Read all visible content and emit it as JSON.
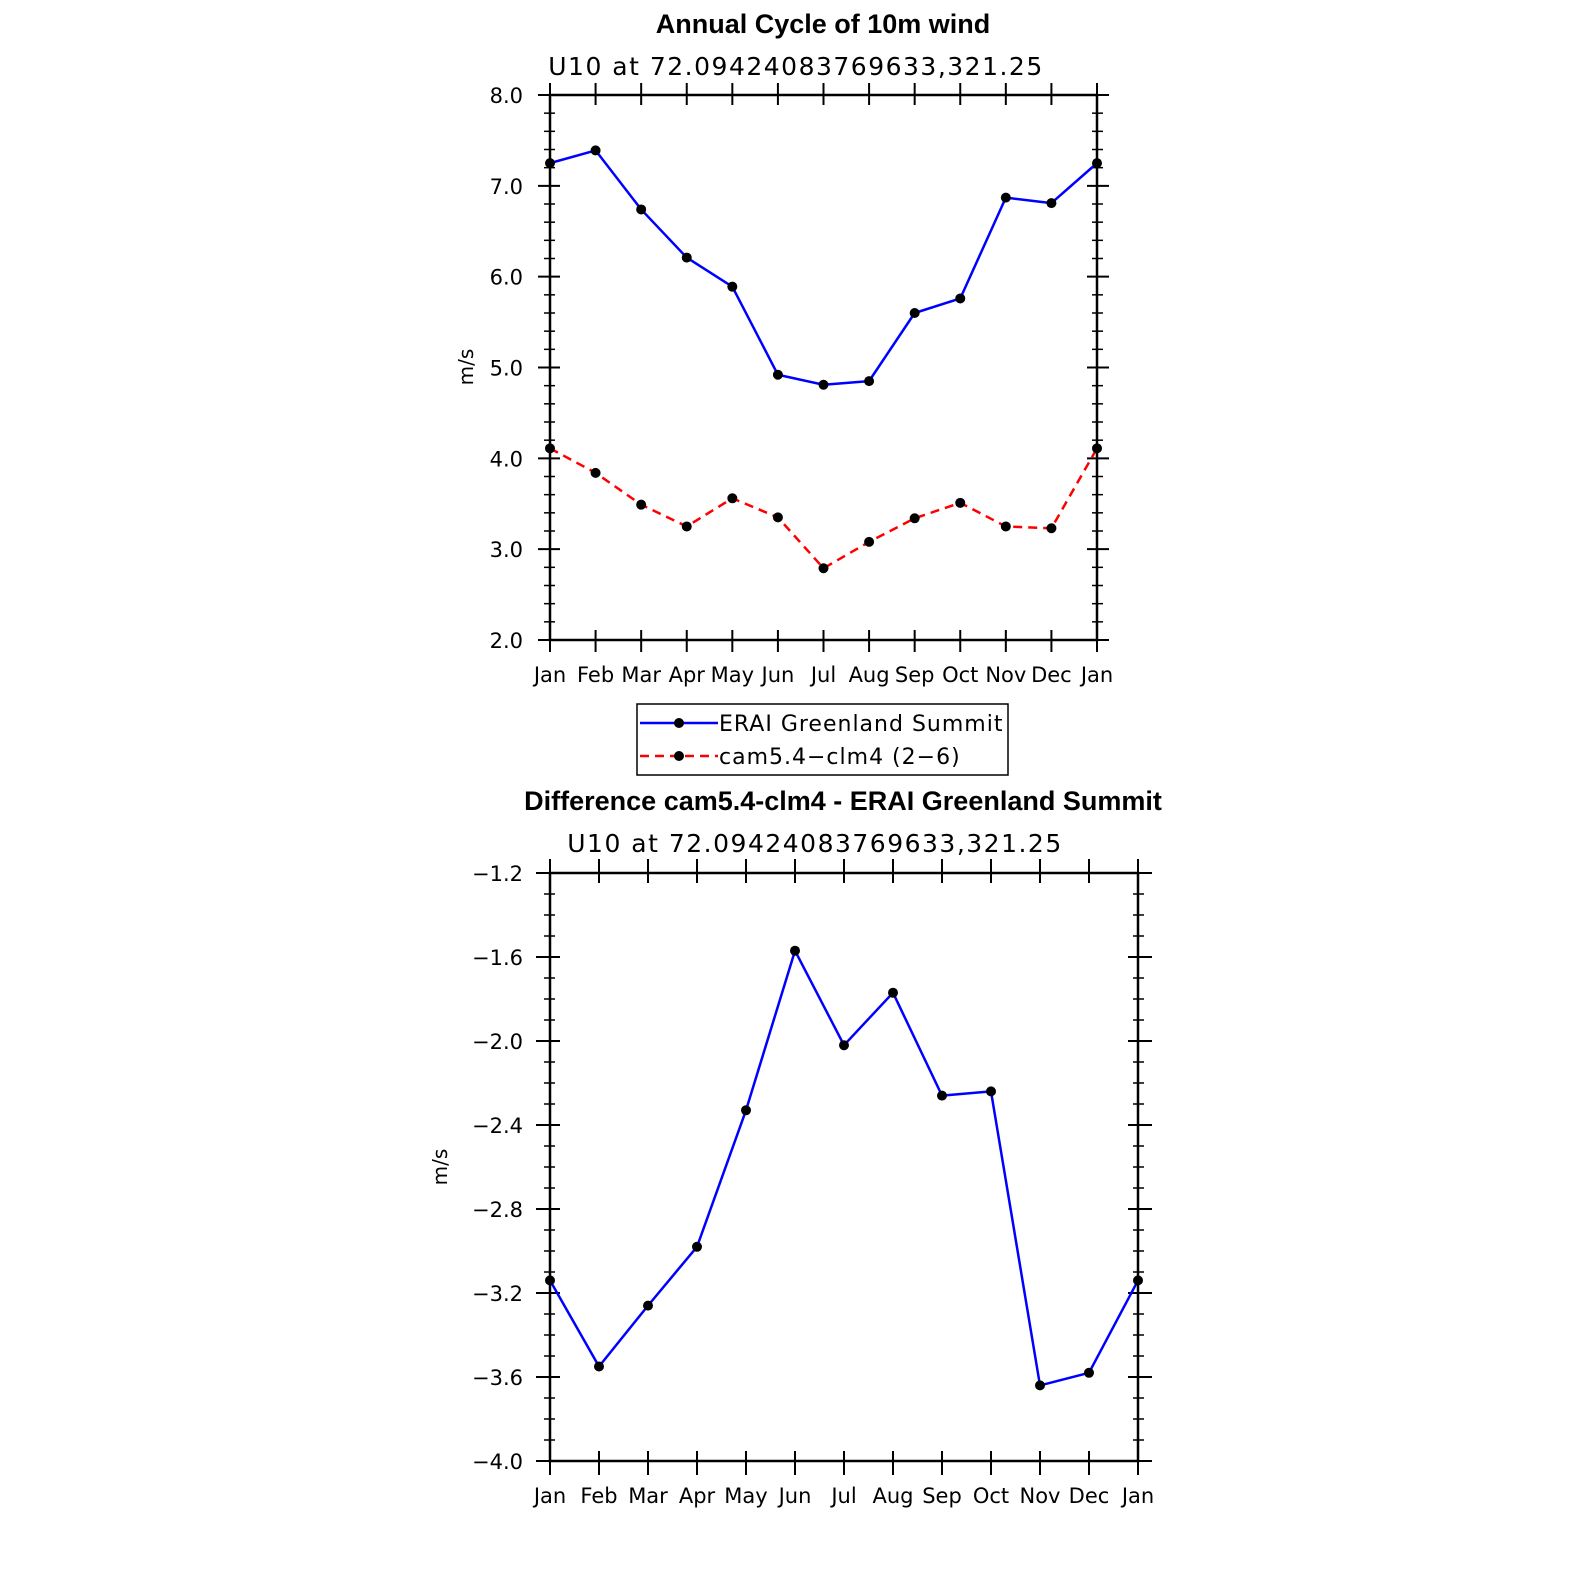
{
  "chart_data": [
    {
      "type": "line",
      "title": "Annual Cycle of 10m wind",
      "subtitle": "U10  at  72.09424083769633,321.25",
      "xlabel": "",
      "ylabel": "m/s",
      "categories": [
        "Jan",
        "Feb",
        "Mar",
        "Apr",
        "May",
        "Jun",
        "Jul",
        "Aug",
        "Sep",
        "Oct",
        "Nov",
        "Dec",
        "Jan"
      ],
      "ylim": [
        2.0,
        8.0
      ],
      "yticks": [
        "2.0",
        "3.0",
        "4.0",
        "5.0",
        "6.0",
        "7.0",
        "8.0"
      ],
      "grid": false,
      "legend_placement": "bottom",
      "series": [
        {
          "name": "ERAI Greenland Summit",
          "color": "#0000ff",
          "dash": "solid",
          "marker": "filled-circle",
          "values": [
            7.25,
            7.39,
            6.74,
            6.21,
            5.89,
            4.92,
            4.81,
            4.85,
            5.6,
            5.76,
            6.87,
            6.81,
            7.25
          ]
        },
        {
          "name": "cam5.4−clm4 (2−6)",
          "color": "#ff0000",
          "dash": "dashed",
          "marker": "filled-circle",
          "values": [
            4.11,
            3.84,
            3.49,
            3.25,
            3.56,
            3.35,
            2.79,
            3.08,
            3.34,
            3.51,
            3.25,
            3.23,
            4.11
          ]
        }
      ]
    },
    {
      "type": "line",
      "title": "Difference cam5.4-clm4 - ERAI Greenland Summit",
      "subtitle": "U10  at  72.09424083769633,321.25",
      "xlabel": "",
      "ylabel": "m/s",
      "categories": [
        "Jan",
        "Feb",
        "Mar",
        "Apr",
        "May",
        "Jun",
        "Jul",
        "Aug",
        "Sep",
        "Oct",
        "Nov",
        "Dec",
        "Jan"
      ],
      "ylim": [
        -4.0,
        -1.2
      ],
      "yticks": [
        "−4.0",
        "−3.6",
        "−3.2",
        "−2.8",
        "−2.4",
        "−2.0",
        "−1.6",
        "−1.2"
      ],
      "grid": false,
      "series": [
        {
          "color": "#0000ff",
          "dash": "solid",
          "marker": "filled-circle",
          "values": [
            -3.14,
            -3.55,
            -3.26,
            -2.98,
            -2.33,
            -1.57,
            -2.02,
            -1.77,
            -2.26,
            -2.24,
            -3.64,
            -3.58,
            -3.14
          ]
        }
      ]
    }
  ]
}
